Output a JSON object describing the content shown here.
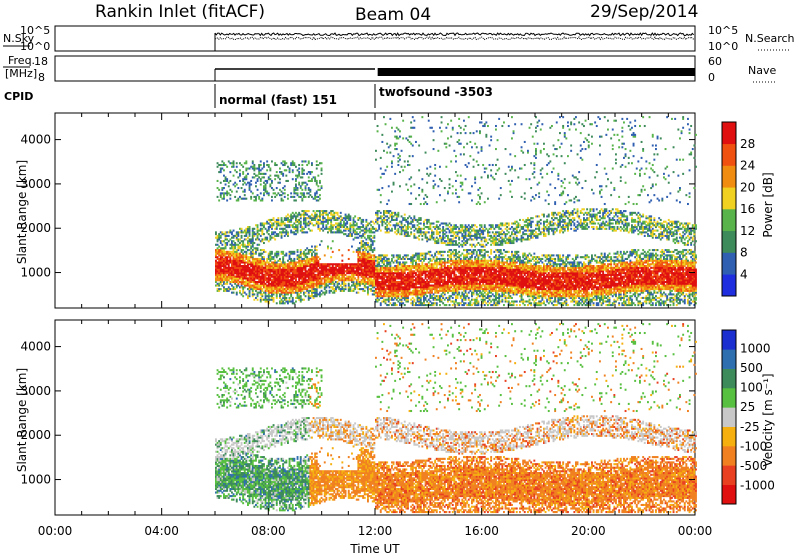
{
  "header": {
    "station": "Rankin Inlet (fitACF)",
    "beam": "Beam 04",
    "date": "29/Sep/2014"
  },
  "top_panels": {
    "nsky_label": "N.Sky",
    "freq_label": "Freq.",
    "freq_unit": "[MHz]",
    "cpid_label": "CPID",
    "nsearch_label": "N.Search",
    "nave_label": "Nave",
    "noise_ticks_left": [
      "10^5",
      "10^0"
    ],
    "noise_ticks_right": [
      "10^5",
      "10^0"
    ],
    "freq_ticks": [
      "18",
      "8"
    ],
    "nave_ticks": [
      "60",
      "0"
    ],
    "cpid_segments": [
      {
        "label": "normal (fast) 151",
        "start_hour": 6.0,
        "end_hour": 12.0
      },
      {
        "label": "twofsound -3503",
        "start_hour": 12.0,
        "end_hour": 24.0
      }
    ]
  },
  "chart_data": [
    {
      "type": "heatmap",
      "name": "power",
      "ylabel": "Slant Range [km]",
      "xlim": [
        0,
        24
      ],
      "ylim": [
        200,
        4600
      ],
      "ytick_labels": [
        "1000",
        "2000",
        "3000",
        "4000"
      ],
      "yticks": [
        1000,
        2000,
        3000,
        4000
      ],
      "colorbar": {
        "label": "Power [dB]",
        "range": [
          0,
          32
        ],
        "tick_labels": [
          "4",
          "8",
          "12",
          "16",
          "20",
          "24",
          "28"
        ],
        "ticks": [
          4,
          8,
          12,
          16,
          20,
          24,
          28
        ],
        "colors": [
          "#1f2fe0",
          "#2f5fb0",
          "#3d8a5a",
          "#58b44a",
          "#f0d020",
          "#f08c10",
          "#f05010",
          "#e01010"
        ]
      }
    },
    {
      "type": "heatmap",
      "name": "velocity",
      "ylabel": "Slant Range [km]",
      "xlabel": "Time UT",
      "xlim": [
        0,
        24
      ],
      "ylim": [
        200,
        4600
      ],
      "ytick_labels": [
        "1000",
        "2000",
        "3000",
        "4000"
      ],
      "yticks": [
        1000,
        2000,
        3000,
        4000
      ],
      "xtick_labels": [
        "00:00",
        "04:00",
        "08:00",
        "12:00",
        "16:00",
        "20:00",
        "00:00"
      ],
      "xticks": [
        0,
        4,
        8,
        12,
        16,
        20,
        24
      ],
      "colorbar": {
        "label": "Velocity [m s⁻¹]",
        "tick_labels": [
          "1000",
          "500",
          "100",
          "25",
          "-25",
          "-100",
          "-500",
          "-1000"
        ],
        "colors": [
          "#1b2fd0",
          "#2e6fb0",
          "#3d8a5a",
          "#58c040",
          "#c8c8c8",
          "#f5b010",
          "#f08020",
          "#e84020",
          "#e01010"
        ]
      }
    }
  ]
}
